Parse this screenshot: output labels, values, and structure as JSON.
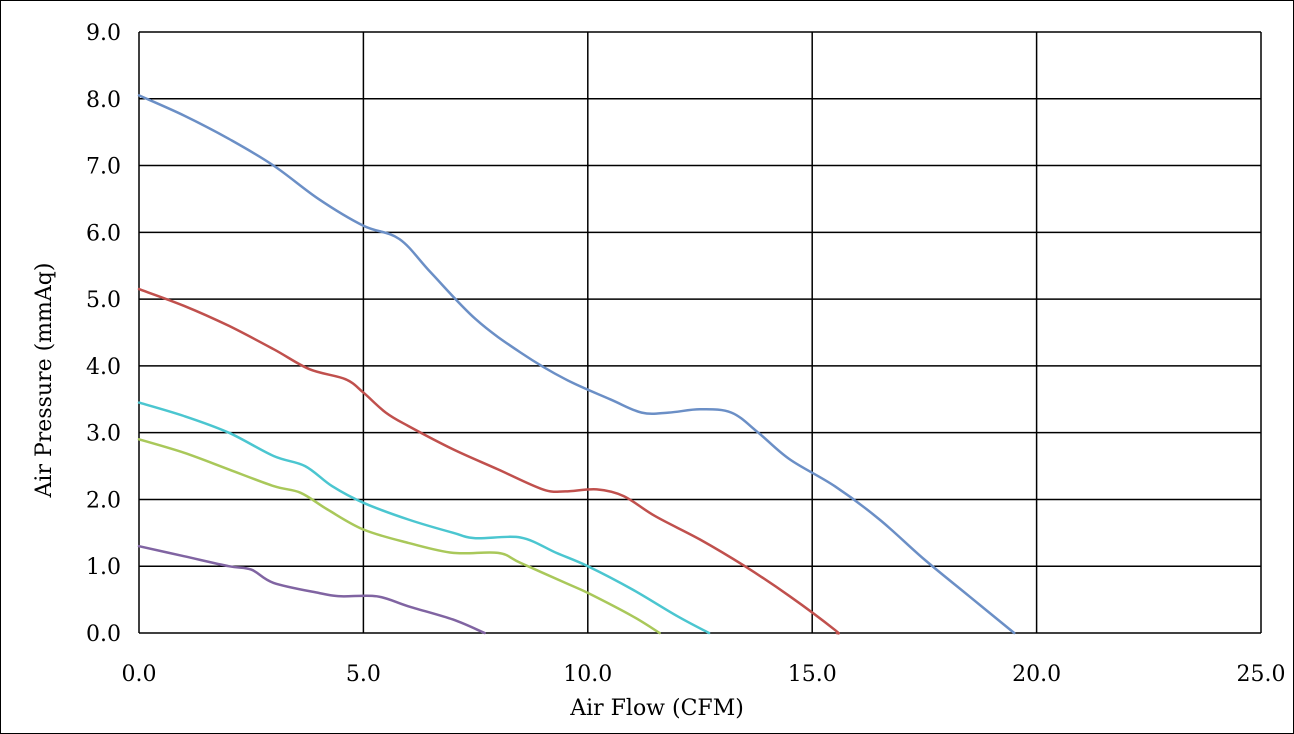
{
  "chart_data": {
    "type": "line",
    "title": "",
    "xlabel": "Air Flow (CFM)",
    "ylabel": "Air Pressure (mmAq)",
    "xlim": [
      0,
      25
    ],
    "ylim": [
      0,
      9
    ],
    "x_ticks": [
      "0.0",
      "5.0",
      "10.0",
      "15.0",
      "20.0",
      "25.0"
    ],
    "y_ticks": [
      "0.0",
      "1.0",
      "2.0",
      "3.0",
      "4.0",
      "5.0",
      "6.0",
      "7.0",
      "8.0",
      "9.0"
    ],
    "grid": true,
    "legend": "none",
    "series": [
      {
        "color": "#6b8fc6",
        "points": [
          [
            0,
            8.05
          ],
          [
            1,
            7.75
          ],
          [
            2,
            7.4
          ],
          [
            3,
            7.0
          ],
          [
            4,
            6.5
          ],
          [
            5,
            6.1
          ],
          [
            5.8,
            5.9
          ],
          [
            6.5,
            5.4
          ],
          [
            7.5,
            4.7
          ],
          [
            8.5,
            4.2
          ],
          [
            9.5,
            3.8
          ],
          [
            10.5,
            3.5
          ],
          [
            11.2,
            3.3
          ],
          [
            11.8,
            3.3
          ],
          [
            12.5,
            3.35
          ],
          [
            13.2,
            3.3
          ],
          [
            13.8,
            3.0
          ],
          [
            14.5,
            2.6
          ],
          [
            15.5,
            2.2
          ],
          [
            16.5,
            1.7
          ],
          [
            17.5,
            1.1
          ],
          [
            18.5,
            0.55
          ],
          [
            19.5,
            0
          ]
        ]
      },
      {
        "color": "#c0504d",
        "points": [
          [
            0,
            5.15
          ],
          [
            1,
            4.9
          ],
          [
            2,
            4.6
          ],
          [
            3,
            4.25
          ],
          [
            3.8,
            3.95
          ],
          [
            4.6,
            3.8
          ],
          [
            5.0,
            3.6
          ],
          [
            5.5,
            3.3
          ],
          [
            6,
            3.1
          ],
          [
            7,
            2.75
          ],
          [
            8,
            2.45
          ],
          [
            9,
            2.15
          ],
          [
            9.5,
            2.12
          ],
          [
            10.2,
            2.15
          ],
          [
            10.8,
            2.05
          ],
          [
            11.5,
            1.75
          ],
          [
            12.5,
            1.4
          ],
          [
            13.5,
            1.0
          ],
          [
            14.5,
            0.55
          ],
          [
            15.5,
            0.05
          ],
          [
            15.55,
            0
          ]
        ]
      },
      {
        "color": "#4bc6d0",
        "points": [
          [
            0,
            3.45
          ],
          [
            1,
            3.25
          ],
          [
            2,
            3.0
          ],
          [
            3,
            2.65
          ],
          [
            3.7,
            2.5
          ],
          [
            4.3,
            2.2
          ],
          [
            5,
            1.95
          ],
          [
            6,
            1.7
          ],
          [
            7,
            1.5
          ],
          [
            7.5,
            1.42
          ],
          [
            8.5,
            1.43
          ],
          [
            9.3,
            1.2
          ],
          [
            10,
            1.0
          ],
          [
            11,
            0.65
          ],
          [
            12,
            0.25
          ],
          [
            12.7,
            0
          ]
        ]
      },
      {
        "color": "#a9c85a",
        "points": [
          [
            0,
            2.9
          ],
          [
            1,
            2.7
          ],
          [
            2,
            2.45
          ],
          [
            3,
            2.2
          ],
          [
            3.6,
            2.1
          ],
          [
            4.2,
            1.85
          ],
          [
            5,
            1.55
          ],
          [
            6,
            1.35
          ],
          [
            7,
            1.2
          ],
          [
            8,
            1.2
          ],
          [
            8.5,
            1.05
          ],
          [
            9.5,
            0.75
          ],
          [
            10,
            0.6
          ],
          [
            11,
            0.25
          ],
          [
            11.6,
            0
          ]
        ]
      },
      {
        "color": "#8064a2",
        "points": [
          [
            0,
            1.3
          ],
          [
            1,
            1.15
          ],
          [
            2,
            1.0
          ],
          [
            2.5,
            0.95
          ],
          [
            3,
            0.75
          ],
          [
            4,
            0.6
          ],
          [
            4.5,
            0.55
          ],
          [
            5.3,
            0.55
          ],
          [
            6,
            0.4
          ],
          [
            7,
            0.2
          ],
          [
            7.7,
            0
          ]
        ]
      }
    ]
  }
}
